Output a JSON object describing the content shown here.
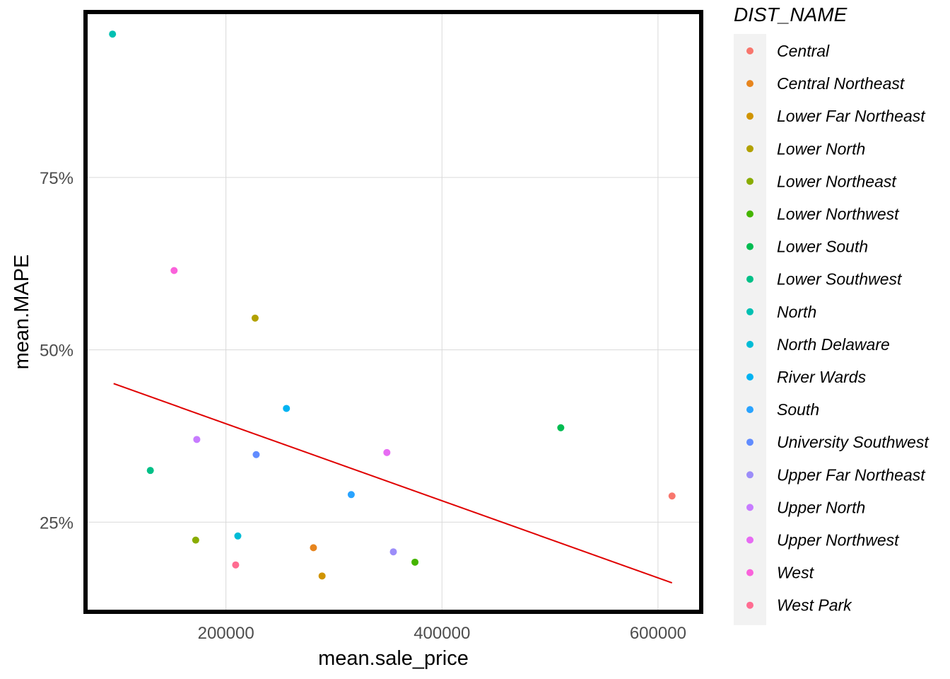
{
  "chart_data": {
    "type": "scatter",
    "title": "",
    "xlabel": "mean.sale_price",
    "ylabel": "mean.MAPE",
    "xlim": [
      70000,
      640000
    ],
    "ylim": [
      0.12,
      0.99
    ],
    "x_ticks": [
      200000,
      400000,
      600000
    ],
    "x_tick_labels": [
      "200000",
      "400000",
      "600000"
    ],
    "y_ticks": [
      0.25,
      0.5,
      0.75
    ],
    "y_tick_labels": [
      "25%",
      "50%",
      "75%"
    ],
    "grid": true,
    "legend_title": "DIST_NAME",
    "legend_position": "right",
    "series": [
      {
        "name": "Central",
        "color": "#F8766D",
        "x": 613000,
        "y": 0.288
      },
      {
        "name": "Central Northeast",
        "color": "#E7851E",
        "x": 281000,
        "y": 0.213
      },
      {
        "name": "Lower Far Northeast",
        "color": "#D09400",
        "x": 289000,
        "y": 0.172
      },
      {
        "name": "Lower North",
        "color": "#B2A100",
        "x": 227000,
        "y": 0.546
      },
      {
        "name": "Lower Northeast",
        "color": "#89AC00",
        "x": 172000,
        "y": 0.224
      },
      {
        "name": "Lower Northwest",
        "color": "#45B500",
        "x": 375000,
        "y": 0.192
      },
      {
        "name": "Lower South",
        "color": "#00BC51",
        "x": 510000,
        "y": 0.387
      },
      {
        "name": "Lower Southwest",
        "color": "#00C087",
        "x": 130000,
        "y": 0.325
      },
      {
        "name": "North",
        "color": "#00C0B2",
        "x": 95000,
        "y": 0.958
      },
      {
        "name": "North Delaware",
        "color": "#00BCD6",
        "x": 211000,
        "y": 0.23
      },
      {
        "name": "River Wards",
        "color": "#00B3F2",
        "x": 256000,
        "y": 0.415
      },
      {
        "name": "South",
        "color": "#29A3FF",
        "x": 316000,
        "y": 0.29
      },
      {
        "name": "University Southwest",
        "color": "#618CFF",
        "x": 228000,
        "y": 0.348
      },
      {
        "name": "Upper Far Northeast",
        "color": "#9C8DF9",
        "x": 355000,
        "y": 0.207
      },
      {
        "name": "Upper North",
        "color": "#C77CFF",
        "x": 173000,
        "y": 0.37
      },
      {
        "name": "Upper Northwest",
        "color": "#E76BF3",
        "x": 349000,
        "y": 0.351
      },
      {
        "name": "West",
        "color": "#FA62DB",
        "x": 152000,
        "y": 0.615
      },
      {
        "name": "West Park",
        "color": "#FF6C91",
        "x": 209000,
        "y": 0.188
      }
    ],
    "trend_line": {
      "color": "#E00000",
      "x": [
        96000,
        613000
      ],
      "y": [
        0.451,
        0.162
      ]
    }
  }
}
